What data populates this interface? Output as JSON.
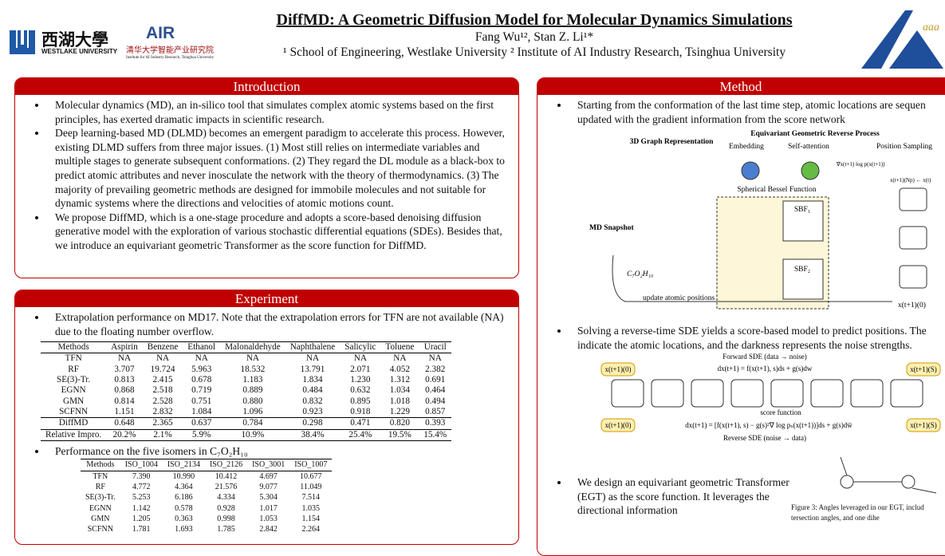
{
  "header": {
    "logo_cn": "西湖大學",
    "logo_en": "WESTLAKE UNIVERSITY",
    "air": "AIR",
    "air_cn": "清华大学智能产业研究院",
    "air_en": "Institute for AI Industry Research, Tsinghua University",
    "title": "DiffMD: A Geometric Diffusion Model for Molecular Dynamics Simulations",
    "authors": "Fang Wu¹², Stan Z. Li¹*",
    "affiliations": "¹ School of Engineering, Westlake University ² Institute of AI Industry Research, Tsinghua University",
    "corner": "aaa"
  },
  "introduction": {
    "title": "Introduction",
    "bullets": [
      "Molecular dynamics (MD), an in-silico tool that simulates complex atomic systems based on the first principles, has exerted dramatic impacts in scientific research.",
      "Deep learning-based MD (DLMD) becomes an emergent paradigm to accelerate this process. However, existing DLMD suffers from three major issues. (1) Most still relies on intermediate variables and multiple stages to generate subsequent conformations. (2) They regard the DL module as a black-box to predict atomic attributes and never inosculate the network with the theory of thermodynamics. (3) The majority of prevailing geometric methods are designed for immobile molecules and not suitable for dynamic systems where the directions and velocities of atomic motions count.",
      "We propose DiffMD, which is a one-stage procedure and adopts a score-based denoising diffusion generative model with the exploration of various stochastic differential equations (SDEs). Besides that, we introduce an equivariant geometric Transformer as the score function for DiffMD."
    ]
  },
  "experiment": {
    "title": "Experiment",
    "bullet1": "Extrapolation performance on MD17. Note that the extrapolation errors for TFN are not available (NA) due to the floating number overflow.",
    "table1": {
      "header": [
        "Methods",
        "Aspirin",
        "Benzene",
        "Ethanol",
        "Malonaldehyde",
        "Naphthalene",
        "Salicylic",
        "Toluene",
        "Uracil"
      ],
      "rows": [
        [
          "TFN",
          "NA",
          "NA",
          "NA",
          "NA",
          "NA",
          "NA",
          "NA",
          "NA"
        ],
        [
          "RF",
          "3.707",
          "19.724",
          "5.963",
          "18.532",
          "13.791",
          "2.071",
          "4.052",
          "2.382"
        ],
        [
          "SE(3)-Tr.",
          "0.813",
          "2.415",
          "0.678",
          "1.183",
          "1.834",
          "1.230",
          "1.312",
          "0.691"
        ],
        [
          "EGNN",
          "0.868",
          "2.518",
          "0.719",
          "0.889",
          "0.484",
          "0.632",
          "1.034",
          "0.464"
        ],
        [
          "GMN",
          "0.814",
          "2.528",
          "0.751",
          "0.880",
          "0.832",
          "0.895",
          "1.018",
          "0.494"
        ],
        [
          "SCFNN",
          "1.151",
          "2.832",
          "1.084",
          "1.096",
          "0.923",
          "0.918",
          "1.229",
          "0.857"
        ],
        [
          "DiffMD",
          "0.648",
          "2.365",
          "0.637",
          "0.784",
          "0.298",
          "0.471",
          "0.820",
          "0.393"
        ],
        [
          "Relative Impro.",
          "20.2%",
          "2.1%",
          "5.9%",
          "10.9%",
          "38.4%",
          "25.4%",
          "19.5%",
          "15.4%"
        ]
      ]
    },
    "bullet2": "Performance on the five isomers in C₇O₂H₁₀",
    "table2": {
      "header": [
        "Methods",
        "ISO_1004",
        "ISO_2134",
        "ISO_2126",
        "ISO_3001",
        "ISO_1007"
      ],
      "rows": [
        [
          "TFN",
          "7.390",
          "10.990",
          "10.412",
          "4.697",
          "10.677"
        ],
        [
          "RF",
          "4.772",
          "4.364",
          "21.576",
          "9.077",
          "11.049"
        ],
        [
          "SE(3)-Tr.",
          "5.253",
          "6.186",
          "4.334",
          "5.304",
          "7.514"
        ],
        [
          "EGNN",
          "1.142",
          "0.578",
          "0.928",
          "1.017",
          "1.035"
        ],
        [
          "GMN",
          "1.205",
          "0.363",
          "0.998",
          "1.053",
          "1.154"
        ],
        [
          "SCFNN",
          "1.781",
          "1.693",
          "1.785",
          "2.842",
          "2.264"
        ]
      ]
    }
  },
  "method": {
    "title": "Method",
    "bullets": [
      "Starting from the conformation of the last time step, atomic locations are sequen updated with the gradient information from the score network",
      "Solving a reverse-time SDE yields a score-based model to predict positions. The indicate the atomic locations, and the darkness represents the noise strengths.",
      "We design an equivariant geometric Transformer (EGT) as the score function. It leverages the directional information"
    ],
    "diagram1": {
      "graph": "3D Graph Representation",
      "process": "Equivariant Geometric Reverse Process",
      "embedding": "Embedding",
      "attention": "Self-attention",
      "sampling": "Position Sampling",
      "bessel": "Spherical Bessel Function",
      "snapshot": "MD Snapshot",
      "formula": "C₇O₂H₁₀",
      "sbf1": "SBF₁",
      "sbf2": "SBF₂",
      "update": "update atomic positions",
      "grad": "∇x(t+1) log p(x(t+1))",
      "xnext": "x(t+1)(Np) ← x(t)",
      "x0": "x(t+1)(0)"
    },
    "diagram2": {
      "forward": "Forward SDE (data → noise)",
      "feq": "dx(t+1) = f(x(t+1), s)ds + g(s)dw",
      "req": "dx(t+1) = [f(x(t+1), s) − g(s)²∇ log pₛ(x(t+1))]ds + g(s)dw̄",
      "score": "score function",
      "reverse": "Reverse SDE (noise → data)",
      "x0": "x(t+1)(0)",
      "xS": "x(t+1)(S)"
    },
    "figure_caption": "Figure 3: Angles leveraged in our EGT, includ tersection angles, and one dihe"
  }
}
